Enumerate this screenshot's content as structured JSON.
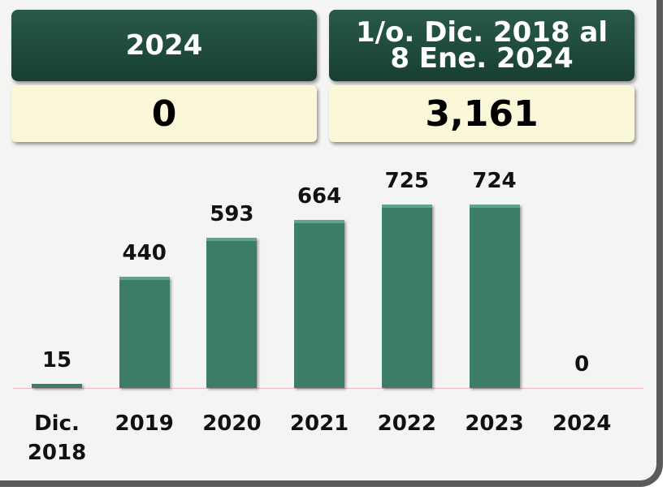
{
  "panels": [
    {
      "title": "2024",
      "value": 0
    },
    {
      "title": "1/o. Dic. 2018 al 8 Ene. 2024",
      "value": 3161,
      "value_label": "3,161"
    }
  ],
  "chart_data": {
    "type": "bar",
    "categories": [
      "Dic. 2018",
      "2019",
      "2020",
      "2021",
      "2022",
      "2023",
      "2024"
    ],
    "values": [
      15,
      440,
      593,
      664,
      725,
      724,
      0
    ],
    "color": "#3b7d67"
  }
}
